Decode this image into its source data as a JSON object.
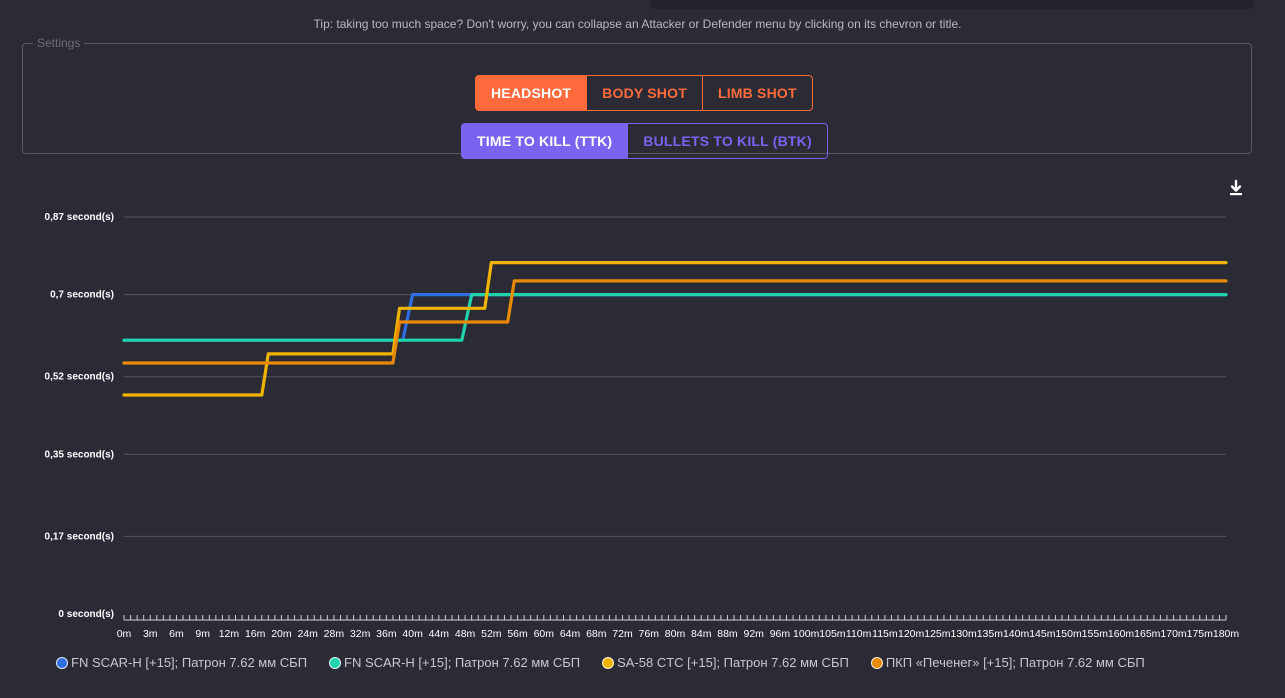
{
  "tip": "Tip: taking too much space? Don't worry, you can collapse an Attacker or Defender menu by clicking on its chevron or title.",
  "settings": {
    "legend": "Settings",
    "hit_zones": [
      {
        "label": "HEADSHOT",
        "active": true
      },
      {
        "label": "BODY SHOT",
        "active": false
      },
      {
        "label": "LIMB SHOT",
        "active": false
      }
    ],
    "modes": [
      {
        "label": "TIME TO KILL (TTK)",
        "active": true
      },
      {
        "label": "BULLETS TO KILL (BTK)",
        "active": false
      }
    ]
  },
  "download_icon": "download-icon",
  "colors": {
    "background": "#2b2b36",
    "grid": "#55555f",
    "headshot_accent": "#ff6a3c",
    "mode_accent": "#7a63ee"
  },
  "chart_data": {
    "type": "line",
    "step": true,
    "y_ticks": [
      {
        "value": 0,
        "label": "0 second(s)"
      },
      {
        "value": 0.17,
        "label": "0,17 second(s)"
      },
      {
        "value": 0.35,
        "label": "0,35 second(s)"
      },
      {
        "value": 0.52,
        "label": "0,52 second(s)"
      },
      {
        "value": 0.7,
        "label": "0,7 second(s)"
      },
      {
        "value": 0.87,
        "label": "0,87 second(s)"
      }
    ],
    "ylim": [
      0,
      0.87
    ],
    "x_categories": [
      "0m",
      "3m",
      "6m",
      "9m",
      "12m",
      "16m",
      "20m",
      "24m",
      "28m",
      "32m",
      "36m",
      "40m",
      "44m",
      "48m",
      "52m",
      "56m",
      "60m",
      "64m",
      "68m",
      "72m",
      "76m",
      "80m",
      "84m",
      "88m",
      "92m",
      "96m",
      "100m",
      "105m",
      "110m",
      "115m",
      "120m",
      "125m",
      "130m",
      "135m",
      "140m",
      "145m",
      "150m",
      "155m",
      "160m",
      "165m",
      "170m",
      "175m",
      "180m"
    ],
    "x_ticks_per_label": 4,
    "grid": true,
    "legend_position": "bottom",
    "series": [
      {
        "name": "FN SCAR-H [+15]; Патрон 7.62 мм СБП",
        "color": "#2e6ee0",
        "points": [
          [
            0,
            0.6
          ],
          [
            38.5,
            0.6
          ],
          [
            40,
            0.7
          ],
          [
            180,
            0.7
          ]
        ]
      },
      {
        "name": "FN SCAR-H [+15]; Патрон 7.62 мм СБП",
        "color": "#1fd3ad",
        "points": [
          [
            0,
            0.6
          ],
          [
            47.5,
            0.6
          ],
          [
            49,
            0.7
          ],
          [
            180,
            0.7
          ]
        ]
      },
      {
        "name": "SA-58 CTC [+15]; Патрон 7.62 мм СБП",
        "color": "#f0b400",
        "points": [
          [
            0,
            0.48
          ],
          [
            17,
            0.48
          ],
          [
            18,
            0.57
          ],
          [
            37,
            0.57
          ],
          [
            38,
            0.67
          ],
          [
            51,
            0.67
          ],
          [
            52,
            0.77
          ],
          [
            180,
            0.77
          ]
        ]
      },
      {
        "name": "ПКП «Печенег» [+15]; Патрон 7.62 мм СБП",
        "color": "#e88a06",
        "points": [
          [
            0,
            0.55
          ],
          [
            37,
            0.55
          ],
          [
            38,
            0.64
          ],
          [
            54.5,
            0.64
          ],
          [
            55.5,
            0.73
          ],
          [
            180,
            0.73
          ]
        ]
      }
    ]
  }
}
